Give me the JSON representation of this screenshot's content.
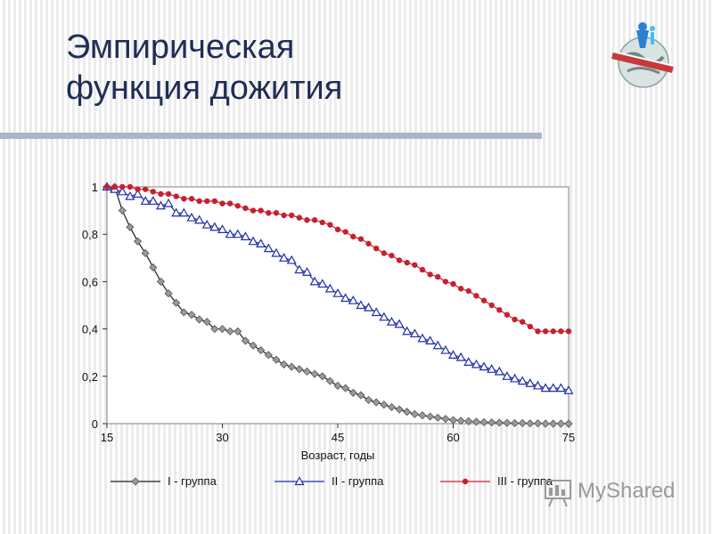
{
  "slide": {
    "title_line1": "Эмпирическая",
    "title_line2": "функция дожития",
    "logo_icon": "globe-logo-icon",
    "watermark_icon": "presentation-board-icon",
    "watermark_text": "MyShared",
    "accent_color": "#1f2d56",
    "rule_color": "#a9b6c9"
  },
  "chart_data": {
    "type": "line",
    "xlabel": "Возраст, годы",
    "ylabel": "",
    "xlim": [
      15,
      75
    ],
    "ylim": [
      0,
      1
    ],
    "x_ticks": [
      15,
      30,
      45,
      60,
      75
    ],
    "y_ticks": [
      0,
      0.2,
      0.4,
      0.6,
      0.8,
      1
    ],
    "x_tick_labels": [
      "15",
      "30",
      "45",
      "60",
      "75"
    ],
    "y_tick_labels": [
      "0",
      "0,2",
      "0,4",
      "0,6",
      "0,8",
      "1"
    ],
    "grid": false,
    "legend_position": "bottom",
    "series": [
      {
        "name": "I  - группа",
        "color": "#1a1a1a",
        "marker": "diamond",
        "marker_color": "#9a9a9a",
        "points": [
          [
            15,
            1
          ],
          [
            16,
            1
          ],
          [
            17,
            0.9
          ],
          [
            18,
            0.83
          ],
          [
            19,
            0.77
          ],
          [
            20,
            0.72
          ],
          [
            21,
            0.66
          ],
          [
            22,
            0.6
          ],
          [
            23,
            0.55
          ],
          [
            24,
            0.51
          ],
          [
            25,
            0.47
          ],
          [
            26,
            0.46
          ],
          [
            27,
            0.44
          ],
          [
            28,
            0.43
          ],
          [
            29,
            0.4
          ],
          [
            30,
            0.4
          ],
          [
            31,
            0.39
          ],
          [
            32,
            0.39
          ],
          [
            33,
            0.35
          ],
          [
            34,
            0.33
          ],
          [
            35,
            0.31
          ],
          [
            36,
            0.29
          ],
          [
            37,
            0.27
          ],
          [
            38,
            0.25
          ],
          [
            39,
            0.24
          ],
          [
            40,
            0.23
          ],
          [
            41,
            0.22
          ],
          [
            42,
            0.21
          ],
          [
            43,
            0.2
          ],
          [
            44,
            0.18
          ],
          [
            45,
            0.16
          ],
          [
            46,
            0.15
          ],
          [
            47,
            0.13
          ],
          [
            48,
            0.12
          ],
          [
            49,
            0.1
          ],
          [
            50,
            0.09
          ],
          [
            51,
            0.08
          ],
          [
            52,
            0.07
          ],
          [
            53,
            0.06
          ],
          [
            54,
            0.05
          ],
          [
            55,
            0.04
          ],
          [
            56,
            0.035
          ],
          [
            57,
            0.03
          ],
          [
            58,
            0.025
          ],
          [
            59,
            0.02
          ],
          [
            60,
            0.015
          ],
          [
            61,
            0.012
          ],
          [
            62,
            0.01
          ],
          [
            63,
            0.008
          ],
          [
            64,
            0.006
          ],
          [
            65,
            0.005
          ],
          [
            66,
            0.004
          ],
          [
            67,
            0.003
          ],
          [
            68,
            0.002
          ],
          [
            69,
            0.002
          ],
          [
            70,
            0.001
          ],
          [
            71,
            0.001
          ],
          [
            72,
            0
          ],
          [
            73,
            0
          ],
          [
            74,
            0
          ],
          [
            75,
            0
          ]
        ]
      },
      {
        "name": "II  - группа",
        "color": "#1f2fa8",
        "marker": "triangle",
        "marker_color": "#ffffff",
        "points": [
          [
            15,
            1
          ],
          [
            16,
            0.99
          ],
          [
            17,
            0.98
          ],
          [
            18,
            0.96
          ],
          [
            19,
            0.97
          ],
          [
            20,
            0.94
          ],
          [
            21,
            0.94
          ],
          [
            22,
            0.92
          ],
          [
            23,
            0.93
          ],
          [
            24,
            0.89
          ],
          [
            25,
            0.89
          ],
          [
            26,
            0.87
          ],
          [
            27,
            0.86
          ],
          [
            28,
            0.84
          ],
          [
            29,
            0.83
          ],
          [
            30,
            0.82
          ],
          [
            31,
            0.8
          ],
          [
            32,
            0.8
          ],
          [
            33,
            0.79
          ],
          [
            34,
            0.77
          ],
          [
            35,
            0.76
          ],
          [
            36,
            0.74
          ],
          [
            37,
            0.72
          ],
          [
            38,
            0.7
          ],
          [
            39,
            0.69
          ],
          [
            40,
            0.65
          ],
          [
            41,
            0.64
          ],
          [
            42,
            0.6
          ],
          [
            43,
            0.59
          ],
          [
            44,
            0.57
          ],
          [
            45,
            0.55
          ],
          [
            46,
            0.53
          ],
          [
            47,
            0.52
          ],
          [
            48,
            0.5
          ],
          [
            49,
            0.49
          ],
          [
            50,
            0.47
          ],
          [
            51,
            0.45
          ],
          [
            52,
            0.43
          ],
          [
            53,
            0.42
          ],
          [
            54,
            0.39
          ],
          [
            55,
            0.38
          ],
          [
            56,
            0.36
          ],
          [
            57,
            0.35
          ],
          [
            58,
            0.33
          ],
          [
            59,
            0.31
          ],
          [
            60,
            0.29
          ],
          [
            61,
            0.28
          ],
          [
            62,
            0.26
          ],
          [
            63,
            0.25
          ],
          [
            64,
            0.24
          ],
          [
            65,
            0.23
          ],
          [
            66,
            0.22
          ],
          [
            67,
            0.2
          ],
          [
            68,
            0.19
          ],
          [
            69,
            0.18
          ],
          [
            70,
            0.17
          ],
          [
            71,
            0.16
          ],
          [
            72,
            0.15
          ],
          [
            73,
            0.15
          ],
          [
            74,
            0.15
          ],
          [
            75,
            0.14
          ]
        ]
      },
      {
        "name": "III - группа",
        "color": "#c8202e",
        "marker": "circle",
        "marker_color": "#c8202e",
        "points": [
          [
            15,
            1
          ],
          [
            16,
            1
          ],
          [
            17,
            1
          ],
          [
            18,
            1
          ],
          [
            19,
            0.99
          ],
          [
            20,
            0.99
          ],
          [
            21,
            0.98
          ],
          [
            22,
            0.97
          ],
          [
            23,
            0.97
          ],
          [
            24,
            0.96
          ],
          [
            25,
            0.95
          ],
          [
            26,
            0.95
          ],
          [
            27,
            0.94
          ],
          [
            28,
            0.94
          ],
          [
            29,
            0.94
          ],
          [
            30,
            0.93
          ],
          [
            31,
            0.93
          ],
          [
            32,
            0.92
          ],
          [
            33,
            0.91
          ],
          [
            34,
            0.9
          ],
          [
            35,
            0.9
          ],
          [
            36,
            0.89
          ],
          [
            37,
            0.89
          ],
          [
            38,
            0.88
          ],
          [
            39,
            0.88
          ],
          [
            40,
            0.87
          ],
          [
            41,
            0.86
          ],
          [
            42,
            0.86
          ],
          [
            43,
            0.85
          ],
          [
            44,
            0.84
          ],
          [
            45,
            0.82
          ],
          [
            46,
            0.81
          ],
          [
            47,
            0.79
          ],
          [
            48,
            0.78
          ],
          [
            49,
            0.76
          ],
          [
            50,
            0.74
          ],
          [
            51,
            0.72
          ],
          [
            52,
            0.71
          ],
          [
            53,
            0.69
          ],
          [
            54,
            0.68
          ],
          [
            55,
            0.67
          ],
          [
            56,
            0.65
          ],
          [
            57,
            0.63
          ],
          [
            58,
            0.62
          ],
          [
            59,
            0.6
          ],
          [
            60,
            0.59
          ],
          [
            61,
            0.57
          ],
          [
            62,
            0.56
          ],
          [
            63,
            0.54
          ],
          [
            64,
            0.52
          ],
          [
            65,
            0.5
          ],
          [
            66,
            0.48
          ],
          [
            67,
            0.46
          ],
          [
            68,
            0.44
          ],
          [
            69,
            0.43
          ],
          [
            70,
            0.41
          ],
          [
            71,
            0.39
          ],
          [
            72,
            0.39
          ],
          [
            73,
            0.39
          ],
          [
            74,
            0.39
          ],
          [
            75,
            0.39
          ]
        ]
      }
    ]
  }
}
